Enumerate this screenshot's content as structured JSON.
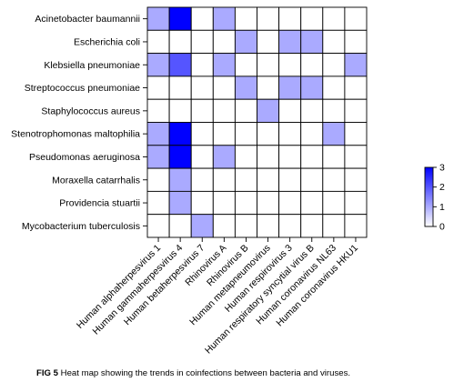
{
  "chart_data": {
    "type": "heatmap",
    "rows": [
      "Acinetobacter baumannii",
      "Escherichia coli",
      "Klebsiella pneumoniae",
      "Streptococcus pneumoniae",
      "Staphylococcus aureus",
      "Stenotrophomonas maltophilia",
      "Pseudomonas aeruginosa",
      "Moraxella catarrhalis",
      "Providencia stuartii",
      "Mycobacterium tuberculosis"
    ],
    "columns": [
      "Human alphaherpesvirus 1",
      "Human gammaherpesvirus 4",
      "Human betaherpesvirus 7",
      "Rhinovirus A",
      "Rhinovirus B",
      "Human metapneumovirus",
      "Human respirovirus 3",
      "Human respiratory syncytial virus B",
      "Human coronavirus NL63",
      "Human coronavirus HKU1"
    ],
    "values": [
      [
        1,
        3,
        0,
        1,
        0,
        0,
        0,
        0,
        0,
        0
      ],
      [
        0,
        0,
        0,
        0,
        1,
        0,
        1,
        1,
        0,
        0
      ],
      [
        1,
        2,
        0,
        1,
        0,
        0,
        0,
        0,
        0,
        1
      ],
      [
        0,
        0,
        0,
        0,
        1,
        0,
        1,
        1,
        0,
        0
      ],
      [
        0,
        0,
        0,
        0,
        0,
        1,
        0,
        0,
        0,
        0
      ],
      [
        1,
        3,
        0,
        0,
        0,
        0,
        0,
        0,
        1,
        0
      ],
      [
        1,
        3,
        0,
        1,
        0,
        0,
        0,
        0,
        0,
        0
      ],
      [
        0,
        1,
        0,
        0,
        0,
        0,
        0,
        0,
        0,
        0
      ],
      [
        0,
        1,
        0,
        0,
        0,
        0,
        0,
        0,
        0,
        0
      ],
      [
        0,
        0,
        1,
        0,
        0,
        0,
        0,
        0,
        0,
        0
      ]
    ],
    "color_scale": {
      "min": 0,
      "max": 3,
      "low_color": "#ffffff",
      "high_color": "#0000ff",
      "ticks": [
        0,
        1,
        2,
        3
      ]
    },
    "grid": true,
    "legend_position": "right"
  },
  "caption": {
    "label": "FIG 5",
    "text": "Heat map showing the trends in coinfections between bacteria and viruses."
  }
}
